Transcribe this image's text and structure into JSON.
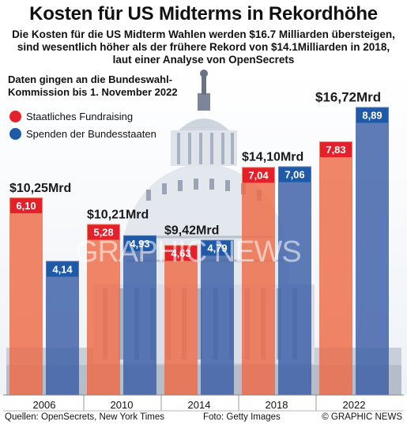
{
  "header": {
    "title": "Kosten für US Midterms in Rekordhöhe",
    "subtitle_lines": [
      "Die Kosten für die US Midterm Wahlen werden $16.7 Milliarden übersteigen,",
      "sind wesentlich höher als der frühere Rekord von $14.1Milliarden in 2018,",
      "laut einer Analyse von OpenSecrets"
    ]
  },
  "note_lines": [
    "Daten gingen an die Bundeswahl-",
    "Kommission bis 1. November 2022"
  ],
  "watermark": "GRAPHIC NEWS",
  "footer": {
    "sources": "Quellen: OpenSecrets, New York Times",
    "photo": "Foto: Getty Images",
    "credit": "© GRAPHIC NEWS"
  },
  "colors": {
    "red": "#e4202b",
    "blue": "#1f5aa8",
    "red_bar": "#ee6a45",
    "blue_bar": "#3b5ea6"
  },
  "chart_data": {
    "type": "bar",
    "categories": [
      "2006",
      "2010",
      "2014",
      "2018",
      "2022"
    ],
    "series": [
      {
        "name": "Staatliches Fundraising",
        "values": [
          6.1,
          5.28,
          4.63,
          7.04,
          7.83
        ],
        "labels": [
          "6,10",
          "5,28",
          "4,63",
          "7,04",
          "7,83"
        ]
      },
      {
        "name": "Spenden der Bundesstaaten",
        "values": [
          4.14,
          4.93,
          4.79,
          7.06,
          8.89
        ],
        "labels": [
          "4,14",
          "4,93",
          "4,79",
          "7,06",
          "8,89"
        ]
      }
    ],
    "totals": [
      "$10,25Mrd",
      "$10,21Mrd",
      "$9,42Mrd",
      "$14,10Mrd",
      "$16,72Mrd"
    ],
    "legend": [
      "Staatliches Fundraising",
      "Spenden der Bundesstaaten"
    ],
    "legend_position": "top-left",
    "ylim": [
      0,
      10
    ],
    "grid": false
  }
}
